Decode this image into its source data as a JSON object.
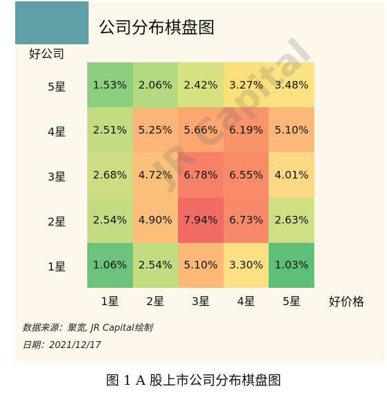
{
  "chart_data": {
    "type": "heatmap",
    "title": "公司分布棋盘图",
    "ylabel": "好公司",
    "xlabel": "好价格",
    "x_categories": [
      "1星",
      "2星",
      "3星",
      "4星",
      "5星"
    ],
    "y_categories": [
      "5星",
      "4星",
      "3星",
      "2星",
      "1星"
    ],
    "values": [
      [
        "1.53%",
        "2.06%",
        "2.42%",
        "3.27%",
        "3.48%"
      ],
      [
        "2.51%",
        "5.25%",
        "5.66%",
        "6.19%",
        "5.10%"
      ],
      [
        "2.68%",
        "4.72%",
        "6.78%",
        "6.55%",
        "4.01%"
      ],
      [
        "2.54%",
        "4.90%",
        "7.94%",
        "6.73%",
        "2.63%"
      ],
      [
        "1.06%",
        "2.54%",
        "5.10%",
        "3.30%",
        "1.03%"
      ]
    ],
    "colors": [
      [
        "#8ccf7e",
        "#b4d981",
        "#d7e17f",
        "#fbe07a",
        "#fbe383"
      ],
      [
        "#c2dc82",
        "#fcb576",
        "#fca670",
        "#f99468",
        "#fbb979"
      ],
      [
        "#cdde82",
        "#fbc079",
        "#f78069",
        "#f98b69",
        "#fdd985"
      ],
      [
        "#c3dc82",
        "#fbbf7a",
        "#f26b64",
        "#f88a6a",
        "#cfdf84"
      ],
      [
        "#6cc27a",
        "#c3dc82",
        "#fbb877",
        "#fde083",
        "#5fbe77"
      ]
    ]
  },
  "watermark": "JR Capital",
  "source_note": "数据来源：聚宽, JR Capital绘制",
  "date_note": "日期：2021/12/17",
  "caption": "图 1 A 股上市公司分布棋盘图"
}
